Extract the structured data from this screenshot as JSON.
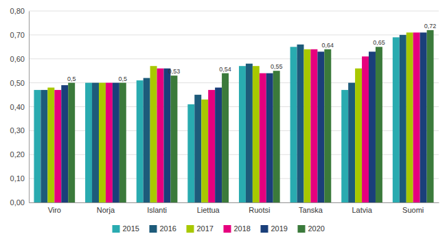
{
  "chart_data": {
    "type": "bar",
    "categories": [
      "Viro",
      "Norja",
      "Islanti",
      "Liettua",
      "Ruotsi",
      "Tanska",
      "Latvia",
      "Suomi"
    ],
    "series": [
      {
        "name": "2015",
        "color": "#29ABB0",
        "values": [
          0.47,
          0.5,
          0.51,
          0.41,
          0.57,
          0.65,
          0.47,
          0.69
        ]
      },
      {
        "name": "2016",
        "color": "#1D5B7A",
        "values": [
          0.47,
          0.5,
          0.52,
          0.45,
          0.58,
          0.66,
          0.5,
          0.7
        ]
      },
      {
        "name": "2017",
        "color": "#A8C800",
        "values": [
          0.48,
          0.5,
          0.57,
          0.43,
          0.57,
          0.64,
          0.56,
          0.71
        ]
      },
      {
        "name": "2018",
        "color": "#E6007E",
        "values": [
          0.47,
          0.5,
          0.56,
          0.47,
          0.54,
          0.64,
          0.61,
          0.71
        ]
      },
      {
        "name": "2019",
        "color": "#1A3F7A",
        "values": [
          0.49,
          0.5,
          0.56,
          0.48,
          0.54,
          0.63,
          0.63,
          0.71
        ]
      },
      {
        "name": "2020",
        "color": "#3B7A3B",
        "values": [
          0.5,
          0.5,
          0.53,
          0.54,
          0.55,
          0.64,
          0.65,
          0.72
        ],
        "data_labels": true,
        "value_labels": [
          "0,5",
          "0,5",
          "0,53",
          "0,54",
          "0,55",
          "0,64",
          "0,65",
          "0,72"
        ]
      }
    ],
    "ylim": [
      0.0,
      0.8
    ],
    "yticks": [
      {
        "value": 0.0,
        "label": "0,00"
      },
      {
        "value": 0.1,
        "label": "0,10"
      },
      {
        "value": 0.2,
        "label": "0,20"
      },
      {
        "value": 0.3,
        "label": "0,30"
      },
      {
        "value": 0.4,
        "label": "0,40"
      },
      {
        "value": 0.5,
        "label": "0,50"
      },
      {
        "value": 0.6,
        "label": "0,60"
      },
      {
        "value": 0.7,
        "label": "0,70"
      },
      {
        "value": 0.8,
        "label": "0,80"
      }
    ],
    "grid": true,
    "legend": "bottom"
  }
}
